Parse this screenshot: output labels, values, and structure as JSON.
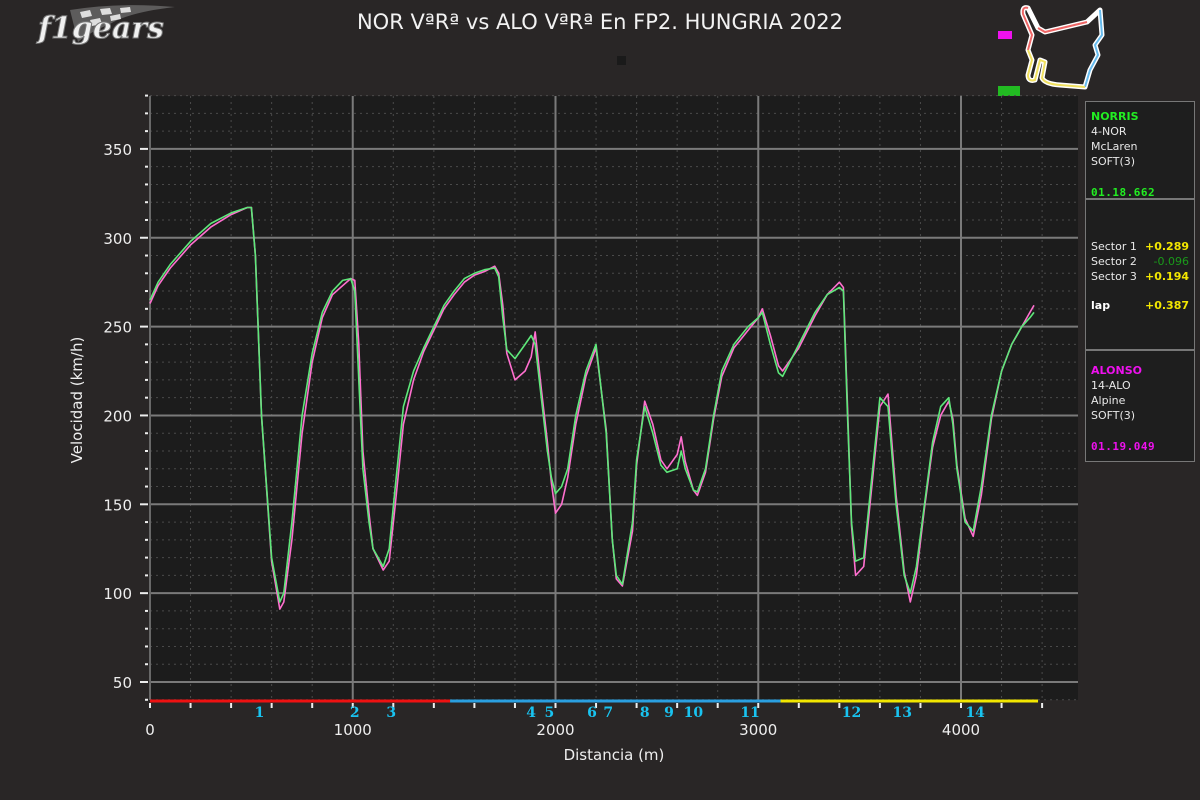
{
  "header": {
    "logo_text": "f1gears",
    "title": "NOR VªRª vs ALO VªRª En FP2. HUNGRIA 2022"
  },
  "colors": {
    "background": "#292626",
    "plot_bg": "#1c1c1c",
    "norris": "#5ee87a",
    "alonso": "#ff6fcf",
    "norris_label": "#22ee22",
    "alonso_label": "#ee11ee",
    "sector1": "#ee1111",
    "sector2": "#2a9fe0",
    "sector3": "#f2e600",
    "corner_label": "#19c3f0",
    "delta_plus": "#f2e600",
    "delta_minus": "#1a9a1a"
  },
  "drivers": [
    {
      "name": "NORRIS",
      "code": "4-NOR",
      "team": "McLaren",
      "tyre": "SOFT(3)",
      "lap_time": "01.18.662"
    },
    {
      "name": "ALONSO",
      "code": "14-ALO",
      "team": "Alpine",
      "tyre": "SOFT(3)",
      "lap_time": "01.19.049"
    }
  ],
  "deltas": {
    "sectors": [
      {
        "label": "Sector 1",
        "value": "+0.289",
        "sign": "plus"
      },
      {
        "label": "Sector 2",
        "value": "-0.096",
        "sign": "minus"
      },
      {
        "label": "Sector 3",
        "value": "+0.194",
        "sign": "plus"
      }
    ],
    "lap_label": "lap",
    "lap_value": "+0.387"
  },
  "chart_data": {
    "type": "line",
    "title": "NOR VªRª vs ALO VªRª En FP2. HUNGRIA 2022",
    "xlabel": "Distancia (m)",
    "ylabel": "Velocidad (km/h)",
    "xlim": [
      0,
      4580
    ],
    "ylim": [
      40,
      380
    ],
    "xticks": [
      0,
      1000,
      2000,
      3000,
      4000
    ],
    "yticks": [
      50,
      100,
      150,
      200,
      250,
      300,
      350
    ],
    "grid": true,
    "sectors": [
      {
        "name": "Sector 1",
        "start": 0,
        "end": 1480,
        "color": "#ee1111"
      },
      {
        "name": "Sector 2",
        "start": 1480,
        "end": 3110,
        "color": "#2a9fe0"
      },
      {
        "name": "Sector 3",
        "start": 3110,
        "end": 4380,
        "color": "#f2e600"
      }
    ],
    "corners": [
      {
        "label": "1",
        "x": 540
      },
      {
        "label": "2",
        "x": 1010
      },
      {
        "label": "3",
        "x": 1190
      },
      {
        "label": "4",
        "x": 1880
      },
      {
        "label": "5",
        "x": 1970
      },
      {
        "label": "6",
        "x": 2180
      },
      {
        "label": "7",
        "x": 2260
      },
      {
        "label": "8",
        "x": 2440
      },
      {
        "label": "9",
        "x": 2560
      },
      {
        "label": "10",
        "x": 2680
      },
      {
        "label": "11",
        "x": 2960
      },
      {
        "label": "12",
        "x": 3460
      },
      {
        "label": "13",
        "x": 3710
      },
      {
        "label": "14",
        "x": 4070
      }
    ],
    "series": [
      {
        "name": "NORRIS",
        "color": "#5ee87a",
        "x": [
          0,
          40,
          100,
          200,
          300,
          400,
          480,
          500,
          520,
          550,
          600,
          640,
          660,
          700,
          750,
          800,
          850,
          900,
          950,
          990,
          1010,
          1030,
          1050,
          1080,
          1100,
          1150,
          1180,
          1210,
          1250,
          1300,
          1350,
          1400,
          1450,
          1500,
          1550,
          1600,
          1650,
          1700,
          1720,
          1740,
          1760,
          1800,
          1850,
          1880,
          1900,
          1930,
          1960,
          1980,
          2000,
          2030,
          2060,
          2100,
          2150,
          2200,
          2250,
          2280,
          2300,
          2330,
          2380,
          2400,
          2440,
          2480,
          2520,
          2550,
          2600,
          2620,
          2640,
          2680,
          2700,
          2740,
          2780,
          2820,
          2880,
          2950,
          3000,
          3020,
          3060,
          3100,
          3120,
          3200,
          3280,
          3340,
          3400,
          3420,
          3440,
          3460,
          3480,
          3520,
          3560,
          3600,
          3640,
          3680,
          3720,
          3750,
          3780,
          3820,
          3860,
          3900,
          3940,
          3960,
          3980,
          4020,
          4060,
          4100,
          4150,
          4200,
          4250,
          4300,
          4340,
          4360
        ],
        "y": [
          265,
          275,
          285,
          298,
          308,
          314,
          317,
          317,
          290,
          200,
          120,
          95,
          100,
          140,
          200,
          235,
          258,
          270,
          276,
          277,
          270,
          220,
          170,
          140,
          125,
          115,
          125,
          160,
          205,
          225,
          238,
          250,
          262,
          270,
          277,
          280,
          282,
          283,
          278,
          255,
          237,
          232,
          240,
          245,
          240,
          210,
          180,
          165,
          156,
          160,
          170,
          200,
          225,
          240,
          190,
          130,
          110,
          105,
          140,
          175,
          205,
          190,
          172,
          168,
          170,
          180,
          170,
          158,
          157,
          170,
          200,
          225,
          240,
          250,
          255,
          258,
          240,
          224,
          222,
          240,
          258,
          268,
          272,
          270,
          200,
          140,
          118,
          120,
          165,
          210,
          205,
          150,
          110,
          100,
          115,
          150,
          185,
          205,
          210,
          195,
          170,
          140,
          135,
          160,
          200,
          225,
          240,
          250,
          255,
          258
        ]
      },
      {
        "name": "ALONSO",
        "color": "#ff6fcf",
        "x": [
          0,
          40,
          100,
          200,
          300,
          400,
          480,
          500,
          520,
          550,
          600,
          640,
          660,
          700,
          750,
          800,
          850,
          900,
          950,
          990,
          1010,
          1030,
          1050,
          1080,
          1100,
          1150,
          1180,
          1210,
          1250,
          1300,
          1350,
          1400,
          1450,
          1500,
          1550,
          1600,
          1650,
          1700,
          1720,
          1740,
          1760,
          1800,
          1850,
          1880,
          1900,
          1930,
          1960,
          1980,
          2000,
          2030,
          2060,
          2100,
          2150,
          2200,
          2250,
          2280,
          2300,
          2330,
          2380,
          2400,
          2440,
          2480,
          2520,
          2550,
          2600,
          2620,
          2640,
          2680,
          2700,
          2740,
          2780,
          2820,
          2880,
          2950,
          3000,
          3020,
          3060,
          3100,
          3120,
          3200,
          3280,
          3340,
          3400,
          3420,
          3440,
          3460,
          3480,
          3520,
          3560,
          3600,
          3640,
          3680,
          3720,
          3750,
          3780,
          3820,
          3860,
          3900,
          3940,
          3960,
          3980,
          4020,
          4060,
          4100,
          4150,
          4200,
          4250,
          4300,
          4340,
          4360
        ],
        "y": [
          263,
          273,
          283,
          296,
          306,
          313,
          317,
          317,
          290,
          200,
          118,
          91,
          95,
          130,
          190,
          230,
          255,
          268,
          273,
          277,
          276,
          240,
          180,
          145,
          125,
          113,
          118,
          150,
          195,
          220,
          236,
          248,
          260,
          268,
          275,
          279,
          281,
          284,
          280,
          262,
          235,
          220,
          225,
          233,
          247,
          215,
          185,
          162,
          145,
          150,
          165,
          195,
          222,
          238,
          192,
          130,
          108,
          104,
          135,
          172,
          208,
          195,
          175,
          170,
          178,
          188,
          174,
          158,
          155,
          168,
          198,
          222,
          238,
          248,
          255,
          260,
          245,
          228,
          225,
          238,
          256,
          268,
          275,
          272,
          205,
          138,
          110,
          115,
          160,
          205,
          212,
          155,
          112,
          95,
          110,
          148,
          182,
          200,
          208,
          198,
          172,
          142,
          132,
          155,
          198,
          225,
          240,
          250,
          258,
          262
        ]
      }
    ]
  }
}
